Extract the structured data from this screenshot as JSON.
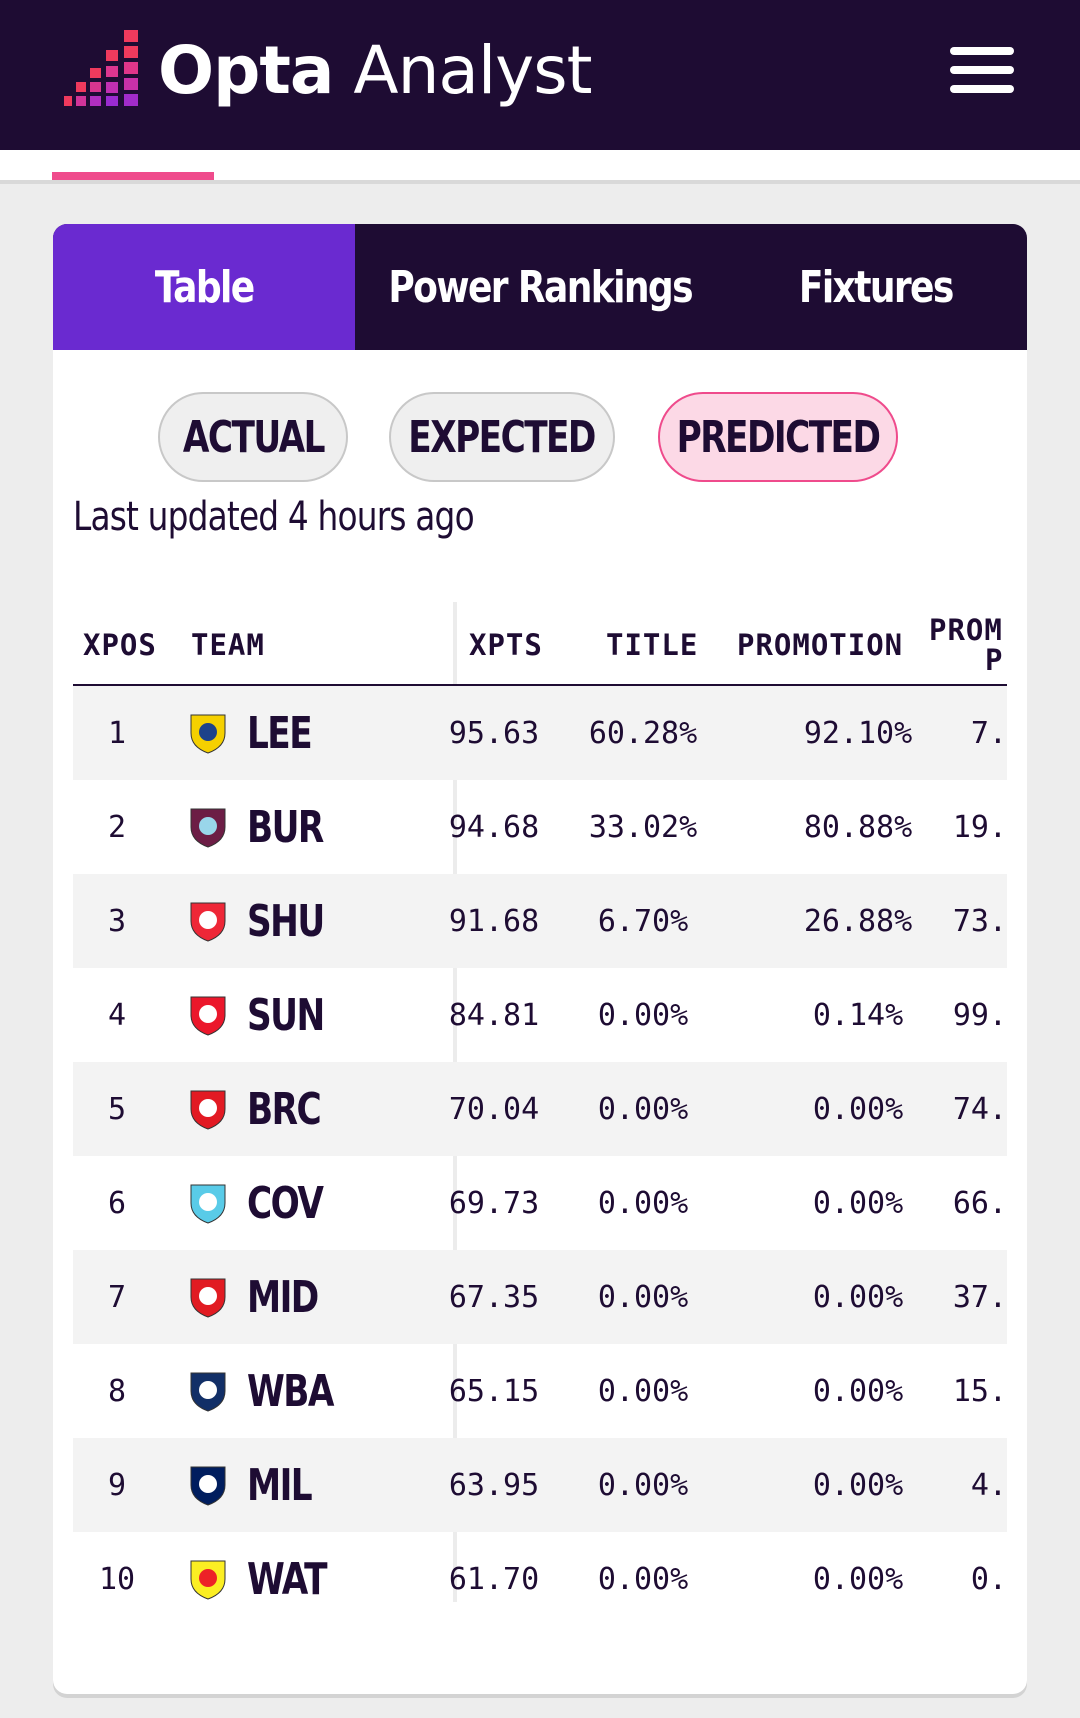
{
  "header": {
    "brand_bold": "Opta",
    "brand_light": " Analyst",
    "menu_icon": "hamburger-menu-icon"
  },
  "tabs": [
    {
      "label": "Table",
      "active": true
    },
    {
      "label": "Power Rankings",
      "active": false
    },
    {
      "label": "Fixtures",
      "active": false
    }
  ],
  "toggle": [
    {
      "label": "ACTUAL",
      "active": false
    },
    {
      "label": "EXPECTED",
      "active": false
    },
    {
      "label": "PREDICTED",
      "active": true
    }
  ],
  "last_updated": "Last updated 4 hours ago",
  "columns": {
    "xpos": "XPOS",
    "team": "TEAM",
    "xpts": "XPTS",
    "title": "TITLE",
    "promotion": "PROMOTION",
    "prom_p_line1": "PROM",
    "prom_p_line2": "P"
  },
  "rows": [
    {
      "pos": "1",
      "team": "LEE",
      "xpts": "95.63",
      "title": "60.28%",
      "promotion": "92.10%",
      "prom_p": "7.",
      "badge_color": "#f5d000",
      "badge_accent": "#1d428a"
    },
    {
      "pos": "2",
      "team": "BUR",
      "xpts": "94.68",
      "title": "33.02%",
      "promotion": "80.88%",
      "prom_p": "19.",
      "badge_color": "#6c1d45",
      "badge_accent": "#99d6ea"
    },
    {
      "pos": "3",
      "team": "SHU",
      "xpts": "91.68",
      "title": "6.70%",
      "promotion": "26.88%",
      "prom_p": "73.",
      "badge_color": "#ee2737",
      "badge_accent": "#ffffff"
    },
    {
      "pos": "4",
      "team": "SUN",
      "xpts": "84.81",
      "title": "0.00%",
      "promotion": "0.14%",
      "prom_p": "99.",
      "badge_color": "#eb172b",
      "badge_accent": "#ffffff"
    },
    {
      "pos": "5",
      "team": "BRC",
      "xpts": "70.04",
      "title": "0.00%",
      "promotion": "0.00%",
      "prom_p": "74.",
      "badge_color": "#e21a23",
      "badge_accent": "#ffffff"
    },
    {
      "pos": "6",
      "team": "COV",
      "xpts": "69.73",
      "title": "0.00%",
      "promotion": "0.00%",
      "prom_p": "66.",
      "badge_color": "#59cbe8",
      "badge_accent": "#ffffff"
    },
    {
      "pos": "7",
      "team": "MID",
      "xpts": "67.35",
      "title": "0.00%",
      "promotion": "0.00%",
      "prom_p": "37.",
      "badge_color": "#e11b22",
      "badge_accent": "#ffffff"
    },
    {
      "pos": "8",
      "team": "WBA",
      "xpts": "65.15",
      "title": "0.00%",
      "promotion": "0.00%",
      "prom_p": "15.",
      "badge_color": "#122f67",
      "badge_accent": "#ffffff"
    },
    {
      "pos": "9",
      "team": "MIL",
      "xpts": "63.95",
      "title": "0.00%",
      "promotion": "0.00%",
      "prom_p": "4.",
      "badge_color": "#001d5e",
      "badge_accent": "#ffffff"
    },
    {
      "pos": "10",
      "team": "WAT",
      "xpts": "61.70",
      "title": "0.00%",
      "promotion": "0.00%",
      "prom_p": "0.",
      "badge_color": "#fbee23",
      "badge_accent": "#ed2127"
    }
  ],
  "colors": {
    "nav_bg": "#1e0c33",
    "active_tab": "#6a2ad0",
    "accent_pink": "#ef4b8c",
    "predicted_pill_bg": "#fcd9e6"
  }
}
